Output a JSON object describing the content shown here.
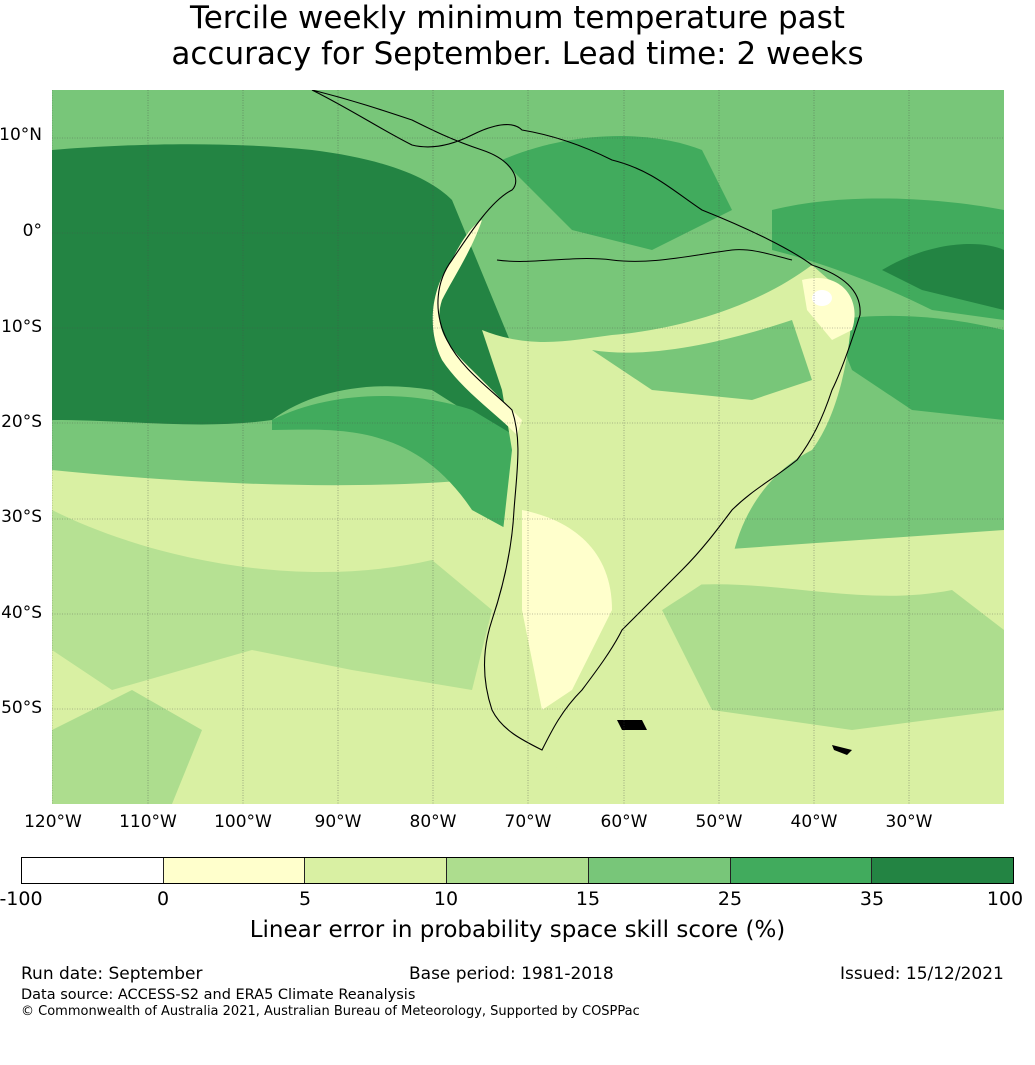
{
  "title": {
    "line1": "Tercile weekly minimum temperature past",
    "line2": "accuracy for September. Lead time: 2 weeks"
  },
  "map": {
    "lat_labels": [
      "10°N",
      "0°",
      "10°S",
      "20°S",
      "30°S",
      "40°S",
      "50°S"
    ],
    "lon_labels": [
      "120°W",
      "110°W",
      "100°W",
      "90°W",
      "80°W",
      "70°W",
      "60°W",
      "50°W",
      "40°W",
      "30°W"
    ]
  },
  "colorbar": {
    "colors": [
      "#ffffff",
      "#ffffcc",
      "#d9f0a3",
      "#addd8e",
      "#78c679",
      "#41ab5d",
      "#238443"
    ],
    "ticks": [
      "-100",
      "0",
      "5",
      "10",
      "15",
      "25",
      "35",
      "100"
    ],
    "label": "Linear error in probability space skill score (%)"
  },
  "footer": {
    "run_date": "Run date: September",
    "base_period": "Base period: 1981-2018",
    "issued": "Issued: 15/12/2021",
    "data_source": "Data source: ACCESS-S2 and ERA5 Climate Reanalysis",
    "copyright": "© Commonwealth of Australia 2021, Australian Bureau of Meteorology, Supported by COSPPac"
  }
}
